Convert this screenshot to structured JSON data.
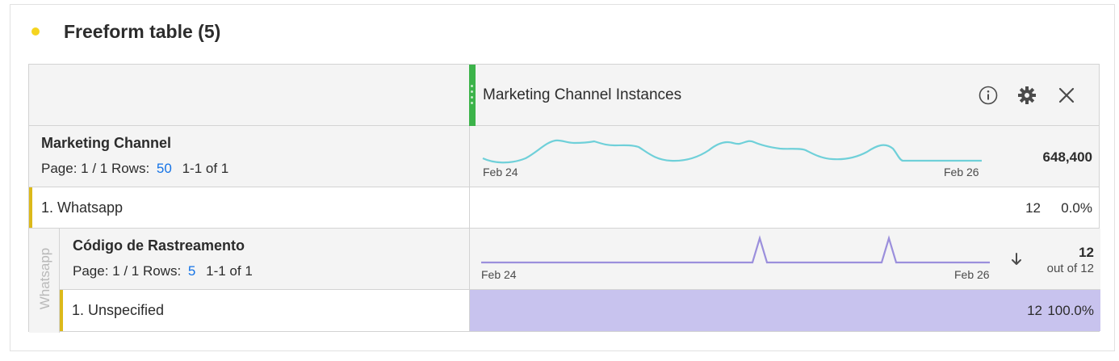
{
  "panel": {
    "title": "Freeform table (5)",
    "status_color": "#f5d41f"
  },
  "header": {
    "metric_title": "Marketing Channel Instances",
    "icons": [
      "info-icon",
      "gear-icon",
      "close-icon"
    ]
  },
  "dimension1": {
    "title": "Marketing Channel",
    "page_label": "Page: 1 / 1 Rows:",
    "rows_value": "50",
    "range": "1-1 of 1",
    "spark_start": "Feb 24",
    "spark_end": "Feb 26",
    "total": "648,400",
    "spark_color": "#6fd0d9"
  },
  "item1": {
    "label": "1.  Whatsapp",
    "value": "12",
    "percent": "0.0%"
  },
  "side_label": "Whatsapp",
  "dimension2": {
    "title": "Código de Rastreamento",
    "page_label": "Page: 1 / 1 Rows:",
    "rows_value": "5",
    "range": "1-1 of 1",
    "spark_start": "Feb 24",
    "spark_end": "Feb 26",
    "total": "12",
    "total_sub": "out of 12",
    "spark_color": "#9b8fdc",
    "sort_icon": "arrow-down-icon"
  },
  "item2": {
    "label": "1.  Unspecified",
    "value": "12",
    "percent": "100.0%",
    "bar_fraction": 1.0,
    "bar_color": "#c8c3ee"
  }
}
